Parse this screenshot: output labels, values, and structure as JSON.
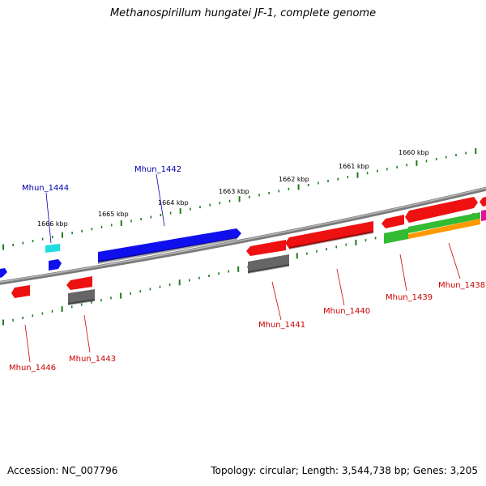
{
  "title": "Methanospirillum hungatei JF-1, complete genome",
  "footer": {
    "accession": "Accession: NC_007796",
    "stats": "Topology: circular; Length: 3,544,738 bp; Genes: 3,205"
  },
  "colors": {
    "backbone": "#8c8c8c",
    "ticks": "#1f7a1f",
    "forward_label": "#0000aa",
    "reverse_label": "#cc0000",
    "blue": "#1010ee",
    "cyan": "#22dddd",
    "red": "#ee1111",
    "gray": "#666666",
    "green": "#33bb33",
    "orange": "#ff9900",
    "magenta": "#e0139a"
  },
  "scale_labels": [
    "1666 kbp",
    "1665 kbp",
    "1664 kbp",
    "1663 kbp",
    "1662 kbp",
    "1661 kbp",
    "1660 kbp"
  ],
  "gene_labels": [
    {
      "name": "Mhun_1444",
      "strand": "forward"
    },
    {
      "name": "Mhun_1442",
      "strand": "forward"
    },
    {
      "name": "Mhun_1446",
      "strand": "reverse"
    },
    {
      "name": "Mhun_1443",
      "strand": "reverse"
    },
    {
      "name": "Mhun_1441",
      "strand": "reverse"
    },
    {
      "name": "Mhun_1440",
      "strand": "reverse"
    },
    {
      "name": "Mhun_1439",
      "strand": "reverse"
    },
    {
      "name": "Mhun_1438",
      "strand": "reverse"
    }
  ]
}
